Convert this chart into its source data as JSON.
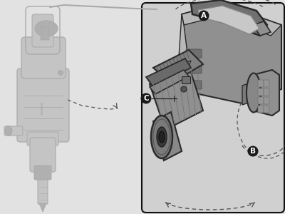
{
  "bg_color": "#d4d4d4",
  "bg_color2": "#e2e2e2",
  "outline_color": "#2a2a2a",
  "fill_dark": "#707070",
  "fill_mid": "#909090",
  "fill_light": "#b8b8b8",
  "fill_lightest": "#d0d0d0",
  "fill_white": "#e8e8e8",
  "label_bg": "#1a1a1a",
  "label_text": "#ffffff",
  "label_A": "A",
  "label_B": "B",
  "label_C": "C",
  "dashed_color": "#555555",
  "line_color": "#222222",
  "box_border": "#111111",
  "ghost_fill": "#c4c4c4",
  "ghost_outline": "#aaaaaa",
  "ghost_dark": "#b0b0b0"
}
